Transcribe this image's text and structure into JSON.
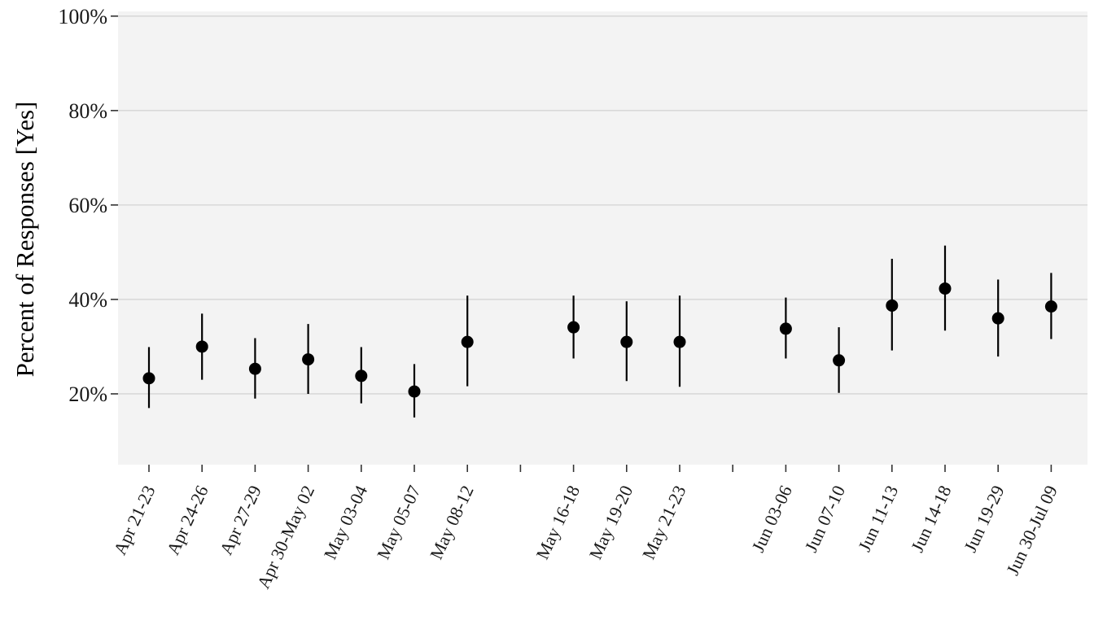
{
  "chart_data": {
    "type": "scatter",
    "title": "",
    "xlabel": "",
    "ylabel": "Percent of Responses [Yes]",
    "y_tick_labels": [
      "20%",
      "40%",
      "60%",
      "80%",
      "100%"
    ],
    "y_ticks": [
      20,
      40,
      60,
      80,
      100
    ],
    "ylim": [
      5,
      101
    ],
    "grid": true,
    "legend": "none",
    "colors": {
      "panel": "#f3f3f3",
      "grid": "#d9d9d9",
      "points": "#000000",
      "axis": "#333333"
    },
    "categories": [
      "Apr 21-23",
      "Apr 24-26",
      "Apr 27-29",
      "Apr 30-May 02",
      "May 03-04",
      "May 05-07",
      "May 08-12",
      "",
      "May 16-18",
      "May 19-20",
      "May 21-23",
      "",
      "Jun 03-06",
      "Jun 07-10",
      "Jun 11-13",
      "Jun 14-18",
      "Jun 19-29",
      "Jun 30-Jul 09"
    ],
    "series": [
      {
        "values": [
          23.3,
          30.0,
          25.3,
          27.3,
          23.8,
          20.5,
          31.0,
          null,
          34.1,
          31.0,
          31.0,
          null,
          33.8,
          27.1,
          38.7,
          42.3,
          36.0,
          38.5
        ],
        "lower": [
          17.0,
          23.0,
          19.0,
          20.0,
          18.0,
          15.0,
          21.6,
          null,
          27.5,
          22.7,
          21.5,
          null,
          27.5,
          20.2,
          29.2,
          33.4,
          27.9,
          31.6
        ],
        "upper": [
          29.9,
          37.0,
          31.8,
          34.8,
          29.9,
          26.3,
          40.8,
          null,
          40.8,
          39.6,
          40.8,
          null,
          40.4,
          34.1,
          48.6,
          51.4,
          44.2,
          45.6
        ]
      }
    ]
  }
}
